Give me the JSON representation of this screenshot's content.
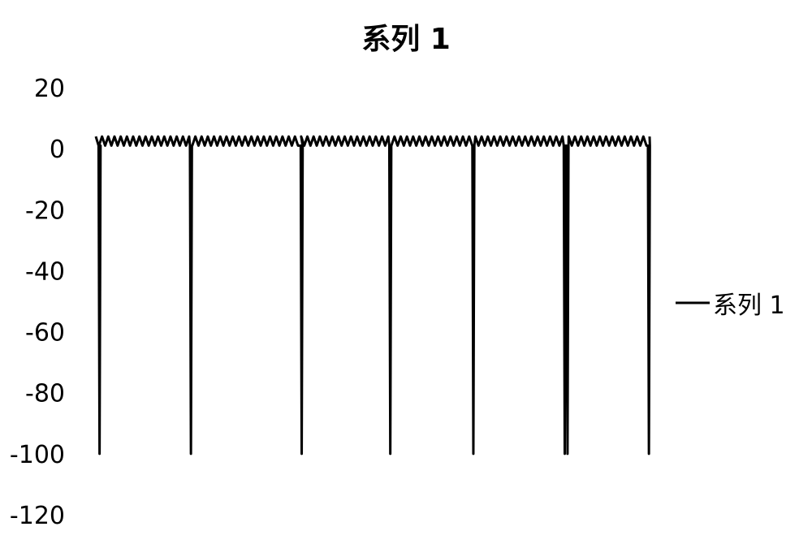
{
  "chart_data": {
    "type": "line",
    "title": "系列 1",
    "xlabel": "",
    "ylabel": "",
    "ylim": [
      -120,
      20
    ],
    "yticks": [
      20,
      0,
      -20,
      -40,
      -60,
      -80,
      -100,
      -120
    ],
    "grid": false,
    "legend_position": "right",
    "series": [
      {
        "name": "系列 1",
        "color": "#000000",
        "baseline_peak": 4,
        "baseline_trough": 1,
        "ripple_count": 89,
        "drop_value": -100,
        "drop_positions": [
          0.005,
          0.17,
          0.37,
          0.53,
          0.68,
          0.845,
          0.85,
          0.997
        ]
      }
    ]
  }
}
